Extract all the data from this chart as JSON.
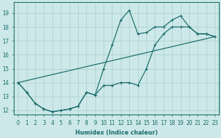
{
  "xlabel": "Humidex (Indice chaleur)",
  "bg_color": "#cce8e8",
  "line_color": "#1a6b6b",
  "grid_color": "#aacccc",
  "xlim": [
    -0.5,
    23.5
  ],
  "ylim": [
    11.7,
    19.8
  ],
  "xticks": [
    0,
    1,
    2,
    3,
    4,
    5,
    6,
    7,
    8,
    9,
    10,
    11,
    12,
    13,
    14,
    15,
    16,
    17,
    18,
    19,
    20,
    21,
    22,
    23
  ],
  "yticks": [
    12,
    13,
    14,
    15,
    16,
    17,
    18,
    19
  ],
  "line1_x": [
    0,
    1,
    2,
    3,
    4,
    5,
    6,
    7,
    8,
    9,
    10,
    11,
    12,
    13,
    14,
    15,
    16,
    17,
    18,
    19,
    20,
    21,
    22,
    23
  ],
  "line1_y": [
    14.0,
    13.3,
    12.5,
    12.1,
    11.9,
    12.0,
    12.1,
    12.3,
    13.3,
    13.1,
    13.8,
    13.8,
    14.0,
    14.0,
    13.8,
    15.0,
    16.7,
    17.5,
    18.0,
    18.0,
    18.0,
    17.5,
    17.5,
    17.3
  ],
  "line2_x": [
    0,
    1,
    2,
    3,
    4,
    5,
    6,
    7,
    8,
    9,
    10,
    11,
    12,
    13,
    14,
    15,
    16,
    17,
    18,
    19,
    20,
    21,
    22,
    23
  ],
  "line2_y": [
    14.0,
    13.3,
    12.5,
    12.1,
    11.9,
    12.0,
    12.1,
    12.3,
    13.3,
    13.1,
    15.0,
    16.7,
    18.5,
    19.2,
    17.5,
    17.6,
    18.0,
    18.0,
    18.5,
    18.8,
    18.0,
    17.5,
    17.5,
    17.3
  ],
  "line3_x": [
    0,
    23
  ],
  "line3_y": [
    14.0,
    17.3
  ]
}
